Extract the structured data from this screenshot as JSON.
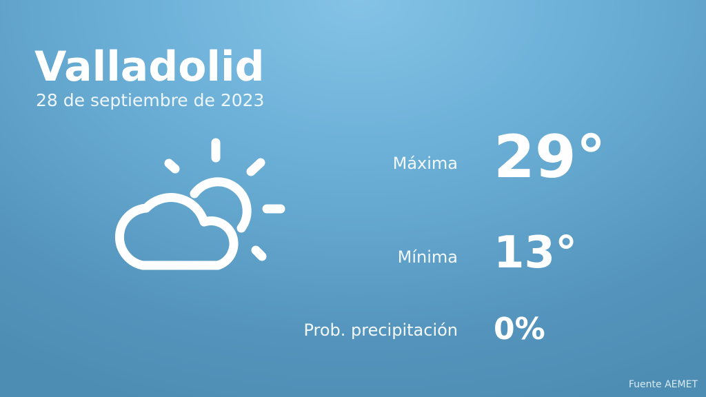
{
  "location": {
    "city": "Valladolid",
    "date": "28 de septiembre de 2023"
  },
  "icon": "partly-cloudy-icon",
  "forecast": {
    "max_label": "Máxima",
    "max_value": "29°",
    "min_label": "Mínima",
    "min_value": "13°",
    "precip_label": "Prob. precipitación",
    "precip_value": "0%"
  },
  "source": "Fuente AEMET",
  "colors": {
    "background_top": "#84c3e6",
    "background_bottom": "#4e8db3",
    "text": "#ffffff"
  }
}
